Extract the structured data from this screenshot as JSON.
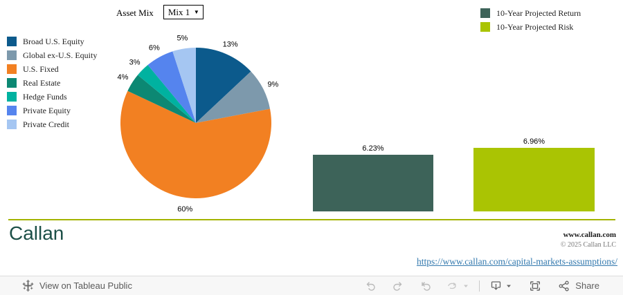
{
  "controls": {
    "asset_mix_label": "Asset Mix",
    "asset_mix_value": "Mix 1",
    "asset_mix_caret": "▼"
  },
  "pie_legend": {
    "items": [
      {
        "label": "Broad U.S. Equity",
        "color": "#0c5a8c"
      },
      {
        "label": "Global ex-U.S. Equity",
        "color": "#7d99ac"
      },
      {
        "label": "U.S. Fixed",
        "color": "#f28022"
      },
      {
        "label": "Real Estate",
        "color": "#0c8873"
      },
      {
        "label": "Hedge Funds",
        "color": "#00b2a0"
      },
      {
        "label": "Private Equity",
        "color": "#5584ee"
      },
      {
        "label": "Private Credit",
        "color": "#a5c6f2"
      }
    ]
  },
  "bar_legend": {
    "items": [
      {
        "label": "10-Year Projected Return",
        "color": "#3d6359"
      },
      {
        "label": "10-Year Projected Risk",
        "color": "#aac403"
      }
    ]
  },
  "chart_data": [
    {
      "type": "pie",
      "title": "Asset Mix — Mix 1",
      "labels": [
        "Broad U.S. Equity",
        "Global ex-U.S. Equity",
        "U.S. Fixed",
        "Real Estate",
        "Hedge Funds",
        "Private Equity",
        "Private Credit"
      ],
      "values": [
        13,
        9,
        60,
        4,
        3,
        6,
        5
      ],
      "data_labels": [
        "13%",
        "9%",
        "60%",
        "4%",
        "3%",
        "6%",
        "5%"
      ],
      "colors": [
        "#0c5a8c",
        "#7d99ac",
        "#f28022",
        "#0c8873",
        "#00b2a0",
        "#5584ee",
        "#a5c6f2"
      ],
      "start_angle_deg": 0,
      "direction": "clockwise",
      "legend_position": "left"
    },
    {
      "type": "bar",
      "title": "10-Year Projected Return",
      "categories": [
        "Mix 1"
      ],
      "values": [
        6.23
      ],
      "data_label": "6.23%",
      "color": "#3d6359",
      "ylim": [
        0,
        7
      ]
    },
    {
      "type": "bar",
      "title": "10-Year Projected Risk",
      "categories": [
        "Mix 1"
      ],
      "values": [
        6.96
      ],
      "data_label": "6.96%",
      "color": "#aac403",
      "ylim": [
        0,
        7
      ]
    }
  ],
  "footer": {
    "logo_text": "Callan",
    "site": "www.callan.com",
    "copyright": "© 2025 Callan LLC",
    "link_text": "https://www.callan.com/capital-markets-assumptions/"
  },
  "toolbar": {
    "view_label": "View on Tableau Public",
    "share_label": "Share"
  }
}
